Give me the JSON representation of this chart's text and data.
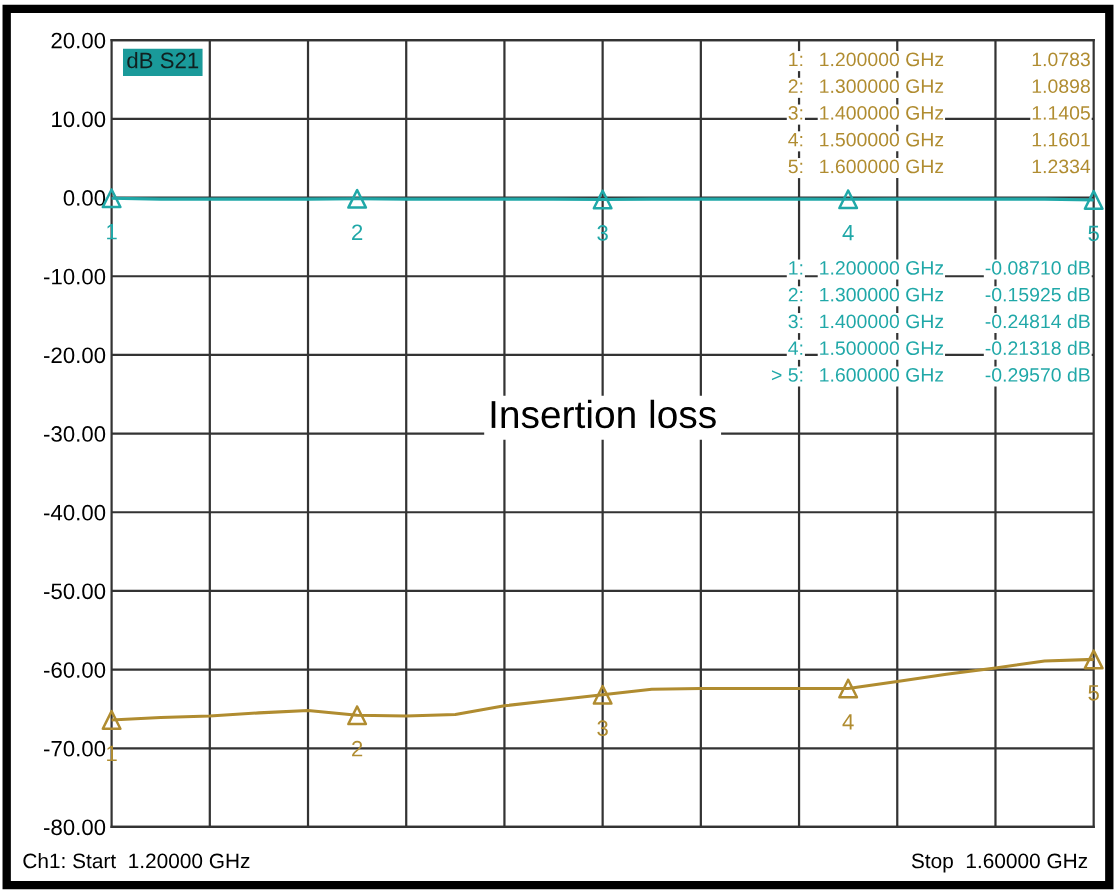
{
  "chart_data": {
    "type": "line",
    "title": "Insertion loss",
    "ylabel": "dB S21",
    "categories": [
      null,
      null,
      null,
      null,
      null,
      null,
      null,
      null,
      null,
      null,
      null,
      null,
      null,
      null,
      null,
      null,
      null,
      null,
      null,
      null,
      null
    ],
    "series": [
      {
        "color": "#b08c30",
        "values": [
          -66.4,
          -66.1,
          -65.9,
          -65.5,
          -65.2,
          -65.8,
          -65.9,
          -65.7,
          -64.6,
          -63.9,
          -63.2,
          -62.5,
          -62.4,
          -62.4,
          -62.4,
          -62.4,
          -61.5,
          -60.6,
          -59.8,
          -58.9,
          -58.7
        ]
      },
      {
        "color": "#20a8a8",
        "values": [
          -0.0871,
          -0.2,
          -0.2,
          -0.2,
          -0.2,
          -0.15925,
          -0.2,
          -0.2,
          -0.2,
          -0.2,
          -0.24814,
          -0.2,
          -0.2,
          -0.2,
          -0.2,
          -0.21318,
          -0.2,
          -0.2,
          -0.2,
          -0.2,
          -0.2957
        ]
      },
      {
        "type": "scatter",
        "marker": "triangle",
        "color": "#b08c30",
        "values": [
          -66.4,
          null,
          null,
          null,
          null,
          -65.8,
          null,
          null,
          null,
          null,
          -63.2,
          null,
          null,
          null,
          null,
          -62.4,
          null,
          null,
          null,
          null,
          -58.7
        ]
      },
      {
        "type": "scatter",
        "marker": "triangle",
        "color": "#20a8a8",
        "values": [
          -0.0871,
          null,
          null,
          null,
          null,
          -0.15925,
          null,
          null,
          null,
          null,
          -0.24814,
          null,
          null,
          null,
          null,
          -0.21318,
          null,
          null,
          null,
          null,
          -0.2957
        ]
      }
    ],
    "ylim": [
      -80,
      20
    ],
    "yticks": [
      {
        "value": 20,
        "label": "20.00"
      },
      {
        "value": 10,
        "label": "10.00"
      },
      {
        "value": 0,
        "label": "0.00"
      },
      {
        "value": -10,
        "label": "-10.00"
      },
      {
        "value": -20,
        "label": "-20.00"
      },
      {
        "value": -30,
        "label": "-30.00"
      },
      {
        "value": -40,
        "label": "-40.00"
      },
      {
        "value": -50,
        "label": "-50.00"
      },
      {
        "value": -60,
        "label": "-60.00"
      },
      {
        "value": -70,
        "label": "-70.00"
      },
      {
        "value": -80,
        "label": "-80.00"
      }
    ],
    "grid": true,
    "tick_labels": "y",
    "annotations": [
      "Ch1: Start  1.20000 GHz",
      "Stop  1.60000 GHz",
      "1:",
      "1.200000 GHz",
      "1.0783",
      "2:",
      "1.300000 GHz",
      "1.0898",
      "3:",
      "1.400000 GHz",
      "1.1405",
      "4:",
      "1.500000 GHz",
      "1.1601",
      "5:",
      "1.600000 GHz",
      "1.2334",
      "1:",
      "1.200000 GHz",
      "-0.08710 dB",
      "2:",
      "1.300000 GHz",
      "-0.15925 dB",
      "3:",
      "1.400000 GHz",
      "-0.24814 dB",
      "4:",
      "1.500000 GHz",
      "-0.21318 dB",
      "> 5:",
      "1.600000 GHz",
      "-0.29570 dB",
      {
        "text": "1",
        "y": -66.4
      },
      {
        "text": "2",
        "y": -65.8
      },
      {
        "text": "3",
        "y": -63.2
      },
      {
        "text": "4",
        "y": -62.4
      },
      {
        "text": "5",
        "y": -58.7
      },
      {
        "text": "1",
        "y": -0.0871
      },
      {
        "text": "2",
        "y": -0.15925
      },
      {
        "text": "3",
        "y": -0.24814
      },
      {
        "text": "4",
        "y": -0.21318
      },
      {
        "text": "5",
        "y": -0.2957
      }
    ]
  }
}
